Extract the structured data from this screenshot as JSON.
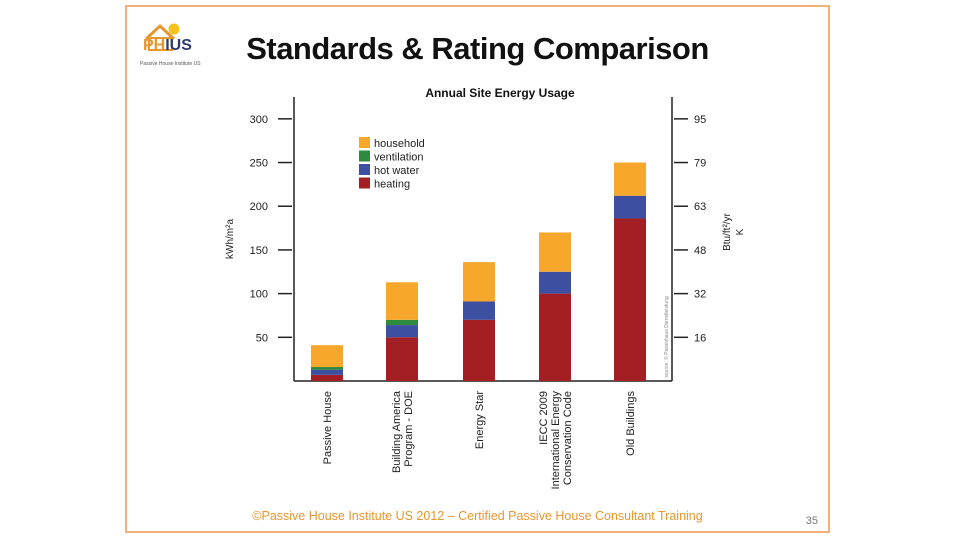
{
  "slide": {
    "title": "Standards & Rating Comparison",
    "footer": "©Passive House Institute US 2012 – Certified Passive House Consultant Training",
    "page_number": "35",
    "logo": {
      "text_ph": "PH",
      "text_ius": "IUS",
      "subtitle": "Passive House Institute US"
    }
  },
  "chart_data": {
    "type": "bar",
    "stacked": true,
    "title": "Annual Site Energy Usage",
    "ylabel": "kWh/m²a",
    "y2label": "Btu/ft²/yr",
    "y2sublabel": "K",
    "ylim": [
      0,
      300
    ],
    "yticks": [
      50,
      100,
      150,
      200,
      250,
      300
    ],
    "y2ticks": [
      "16",
      "32",
      "48",
      "63",
      "79",
      "95"
    ],
    "categories": [
      "Passive House",
      "Building America Program - DOE",
      "Energy Star",
      "IECC 2009 International Energy Conservation Code",
      "Old Buildings"
    ],
    "category_lines": [
      [
        "Passive House"
      ],
      [
        "Building America",
        "Program - DOE"
      ],
      [
        "Energy Star"
      ],
      [
        "IECC 2009",
        "International Energy",
        "Conservation Code"
      ],
      [
        "Old Buildings"
      ]
    ],
    "series": [
      {
        "name": "heating",
        "color": "#a31f24",
        "values": [
          7,
          50,
          70,
          100,
          186
        ]
      },
      {
        "name": "hot water",
        "color": "#3d4fa0",
        "values": [
          6,
          14,
          21,
          25,
          26
        ]
      },
      {
        "name": "ventilation",
        "color": "#2e8b3e",
        "values": [
          3,
          6,
          0,
          0,
          0
        ]
      },
      {
        "name": "household",
        "color": "#f6a72c",
        "values": [
          25,
          43,
          45,
          45,
          38
        ]
      }
    ],
    "legend_order": [
      "household",
      "ventilation",
      "hot water",
      "heating"
    ],
    "legend_position": "top-left",
    "source_note": "source: © Passivhaus Dienstleistung"
  }
}
